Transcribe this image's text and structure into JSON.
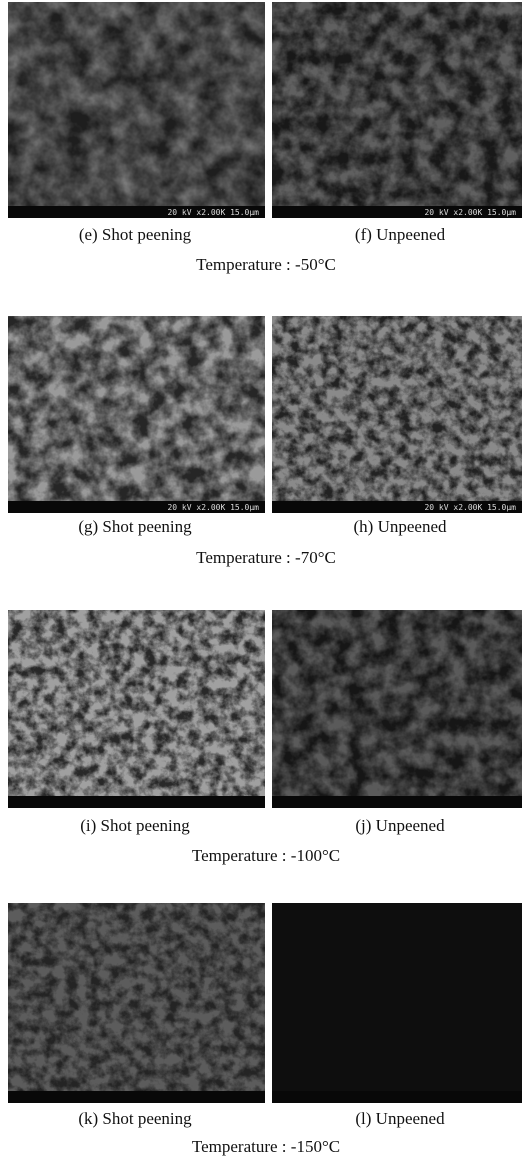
{
  "rows": [
    {
      "panels": [
        {
          "caption": "(e) Shot peening",
          "scale_bar": "20 kV x2.00K 15.0µm"
        },
        {
          "caption": "(f) Unpeened",
          "scale_bar": "20 kV x2.00K 15.0µm"
        }
      ],
      "temperature": "Temperature : -50°C"
    },
    {
      "panels": [
        {
          "caption": "(g) Shot peening",
          "scale_bar": "20 kV x2.00K 15.0µm"
        },
        {
          "caption": "(h) Unpeened",
          "scale_bar": "20 kV x2.00K 15.0µm"
        }
      ],
      "temperature": "Temperature : -70°C"
    },
    {
      "panels": [
        {
          "caption": "(i) Shot peening"
        },
        {
          "caption": "(j) Unpeened"
        }
      ],
      "temperature": "Temperature : -100°C"
    },
    {
      "panels": [
        {
          "caption": "(k) Shot peening"
        },
        {
          "caption": "(l) Unpeened"
        }
      ],
      "temperature": "Temperature : -150°C"
    }
  ]
}
